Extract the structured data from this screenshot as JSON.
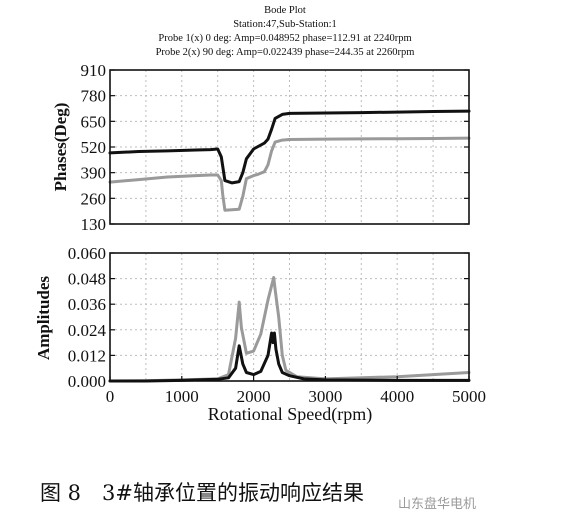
{
  "chart_data": [
    {
      "type": "line",
      "title": "Bode Plot",
      "subtitles": [
        "Station:47,Sub-Station:1",
        "Probe 1(x) 0 deg: Amp=0.048952 phase=112.91 at 2240rpm",
        "Probe 2(x) 90 deg: Amp=0.022439 phase=244.35 at 2260rpm"
      ],
      "ylabel": "Phases(Deg)",
      "xlabel": "",
      "xlim": [
        0,
        5000
      ],
      "ylim": [
        130,
        910
      ],
      "yticks": [
        "910",
        "780",
        "650",
        "520",
        "390",
        "260",
        "130"
      ],
      "grid": true,
      "colors": {
        "series1": "#111111",
        "series2": "#9a9a9a"
      },
      "series": [
        {
          "x": [
            0,
            400,
            800,
            1200,
            1400,
            1500,
            1550,
            1600,
            1700,
            1800,
            1850,
            1900,
            2000,
            2050,
            2150,
            2200,
            2250,
            2300,
            2400,
            2500,
            3000,
            3500,
            4000,
            4500,
            5000
          ],
          "values": [
            490,
            497,
            500,
            505,
            507,
            510,
            470,
            350,
            338,
            345,
            390,
            460,
            510,
            520,
            540,
            560,
            610,
            665,
            685,
            690,
            692,
            694,
            697,
            700,
            702
          ]
        },
        {
          "x": [
            0,
            400,
            800,
            1200,
            1400,
            1500,
            1550,
            1570,
            1600,
            1800,
            1850,
            1900,
            2000,
            2050,
            2150,
            2200,
            2250,
            2300,
            2400,
            2500,
            3000,
            3500,
            4000,
            4500,
            5000
          ],
          "values": [
            342,
            355,
            368,
            375,
            378,
            378,
            350,
            280,
            200,
            205,
            270,
            360,
            375,
            380,
            395,
            430,
            500,
            545,
            555,
            558,
            560,
            561,
            562,
            563,
            565
          ]
        }
      ]
    },
    {
      "type": "line",
      "ylabel": "Amplitudes",
      "xlabel": "Rotational Speed(rpm)",
      "xlim": [
        0,
        5000
      ],
      "ylim": [
        0,
        0.06
      ],
      "xticks": [
        "0",
        "1000",
        "2000",
        "3000",
        "4000",
        "5000"
      ],
      "yticks": [
        "0.060",
        "0.048",
        "0.036",
        "0.024",
        "0.012",
        "0.000"
      ],
      "grid": true,
      "series": [
        {
          "x": [
            0,
            500,
            1000,
            1500,
            1650,
            1750,
            1800,
            1850,
            1900,
            2000,
            2100,
            2200,
            2250,
            2270,
            2290,
            2310,
            2350,
            2400,
            2500,
            2700,
            3000,
            4000,
            5000
          ],
          "values": [
            0.0,
            0.0,
            0.0003,
            0.0008,
            0.0015,
            0.006,
            0.0165,
            0.008,
            0.004,
            0.003,
            0.0045,
            0.012,
            0.0225,
            0.018,
            0.0225,
            0.015,
            0.008,
            0.004,
            0.0025,
            0.001,
            0.0005,
            0.0003,
            0.0003
          ]
        },
        {
          "x": [
            0,
            500,
            1000,
            1500,
            1650,
            1750,
            1800,
            1830,
            1900,
            2000,
            2100,
            2200,
            2280,
            2300,
            2350,
            2400,
            2450,
            2600,
            3000,
            4000,
            5000
          ],
          "values": [
            0.0,
            0.0001,
            0.0005,
            0.001,
            0.003,
            0.02,
            0.037,
            0.025,
            0.013,
            0.014,
            0.022,
            0.038,
            0.0485,
            0.043,
            0.03,
            0.012,
            0.005,
            0.002,
            0.001,
            0.002,
            0.004
          ]
        }
      ]
    }
  ],
  "caption": "图 8　3#轴承位置的振动响应结果",
  "watermark": "山东盘华电机"
}
